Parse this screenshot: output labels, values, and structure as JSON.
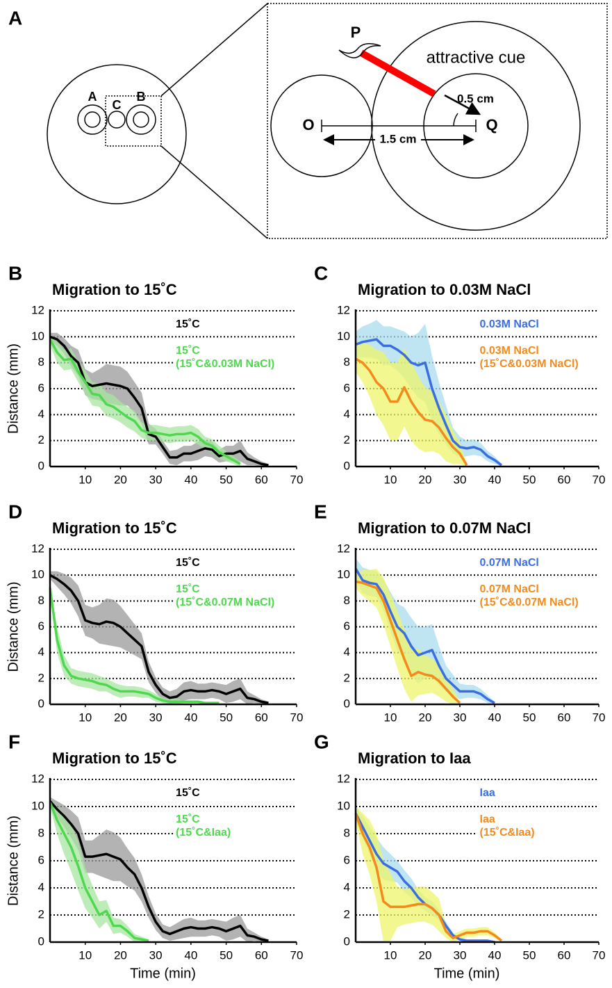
{
  "diagram": {
    "panel": "A",
    "dish_labels": [
      "A",
      "C",
      "B"
    ],
    "point_p": "P",
    "cue_label": "attractive cue",
    "radius_label": "0.5 cm",
    "point_o": "O",
    "point_q": "Q",
    "distance_label": "1.5 cm"
  },
  "chart_data": [
    {
      "type": "line",
      "panel": "B",
      "title": "Migration to 15˚C",
      "ylabel": "Distance (mm)",
      "xlim": [
        0,
        70
      ],
      "xticks": [
        10,
        20,
        30,
        40,
        50,
        60,
        70
      ],
      "ylim": [
        0,
        12
      ],
      "yticks": [
        0,
        2,
        4,
        6,
        8,
        10,
        12
      ],
      "grid": true,
      "legend": "upper right",
      "x": [
        0,
        2,
        4,
        6,
        8,
        10,
        12,
        14,
        16,
        18,
        20,
        22,
        24,
        26,
        28,
        30,
        32,
        34,
        36,
        38,
        40,
        42,
        44,
        46,
        48,
        50,
        52,
        54,
        56,
        58,
        60,
        62
      ],
      "series": [
        {
          "name": "15˚C",
          "color": "#000000",
          "band_color": "#9a9a9a",
          "values": [
            10,
            9.8,
            9.3,
            8.5,
            8,
            6.5,
            6.2,
            6.3,
            6.4,
            6.3,
            6.2,
            6,
            5.3,
            4.5,
            2.5,
            2.3,
            1.5,
            0.7,
            0.7,
            1,
            1,
            1.2,
            1.4,
            1.3,
            0.8,
            1,
            1,
            1.2,
            0.6,
            0.4,
            0.2,
            0.1
          ],
          "error": [
            0.3,
            0.5,
            0.6,
            0.8,
            1,
            1,
            1,
            1.2,
            1.5,
            1.5,
            1.5,
            1.3,
            1.2,
            1.2,
            0.8,
            0.6,
            0.5,
            0.5,
            0.6,
            0.6,
            0.6,
            0.7,
            0.6,
            0.6,
            0.5,
            0.6,
            0.6,
            0.8,
            0.5,
            0.3,
            0.2,
            0.1
          ]
        },
        {
          "name": "15˚C\n(15˚C&0.03M NaCl)",
          "color": "#4fd84f",
          "band_color": "#a8e6a0",
          "values": [
            9.8,
            8.8,
            8.2,
            8.3,
            7.3,
            6.5,
            5.6,
            5.5,
            4.8,
            4.6,
            4.2,
            3.8,
            3.5,
            2.8,
            2.6,
            2.6,
            2.5,
            2.4,
            2.5,
            2.5,
            2.6,
            2.3,
            1.8,
            1.6,
            1.1,
            0.8,
            0.5,
            0.2,
            null,
            null,
            null,
            null
          ],
          "error": [
            0.4,
            0.8,
            0.8,
            0.8,
            0.8,
            0.9,
            0.9,
            0.9,
            0.9,
            0.9,
            0.8,
            0.8,
            0.8,
            0.6,
            0.6,
            0.6,
            0.6,
            0.6,
            0.6,
            0.6,
            0.6,
            0.6,
            0.5,
            0.5,
            0.5,
            0.4,
            0.3,
            0.2,
            null,
            null,
            null,
            null
          ]
        }
      ]
    },
    {
      "type": "line",
      "panel": "C",
      "title": "Migration to 0.03M NaCl",
      "xlim": [
        0,
        70
      ],
      "xticks": [
        10,
        20,
        30,
        40,
        50,
        60,
        70
      ],
      "ylim": [
        0,
        12
      ],
      "yticks": [
        0,
        2,
        4,
        6,
        8,
        10,
        12
      ],
      "grid": true,
      "legend": "upper right",
      "x": [
        0,
        2,
        4,
        6,
        8,
        10,
        12,
        14,
        16,
        18,
        20,
        22,
        24,
        26,
        28,
        30,
        32,
        34,
        36,
        38,
        40,
        42
      ],
      "series": [
        {
          "name": "0.03M NaCl",
          "color": "#3a6ee0",
          "band_color": "#a9dcee",
          "values": [
            9.4,
            9.6,
            9.7,
            9.8,
            9.3,
            9.3,
            9,
            8.6,
            8,
            7.8,
            8,
            6,
            4.5,
            3.2,
            2,
            1.5,
            1.4,
            1.5,
            1.3,
            0.8,
            0.5,
            0.1
          ],
          "error": [
            1,
            1.2,
            1.3,
            1.5,
            1.5,
            1.5,
            1.6,
            1.8,
            2,
            2.5,
            3,
            2.5,
            2,
            1.5,
            1,
            0.8,
            0.6,
            0.6,
            0.5,
            0.4,
            0.3,
            0.1
          ]
        },
        {
          "name": "0.03M NaCl\n(15˚C&0.03M NaCl)",
          "color": "#f28a1c",
          "band_color": "#eef46a",
          "values": [
            8.3,
            8,
            7.4,
            6.5,
            6,
            5,
            5,
            6.1,
            5,
            4.2,
            3.6,
            3.5,
            3,
            2.2,
            1.5,
            1,
            0.1,
            null,
            null,
            null,
            null,
            null
          ],
          "error": [
            1,
            1.5,
            2,
            2.5,
            2.8,
            3,
            3,
            3,
            3,
            2.8,
            2.5,
            2.3,
            2,
            1.8,
            1.3,
            0.8,
            0.1,
            null,
            null,
            null,
            null,
            null
          ]
        }
      ]
    },
    {
      "type": "line",
      "panel": "D",
      "title": "Migration to 15˚C",
      "ylabel": "Distance (mm)",
      "xlim": [
        0,
        70
      ],
      "xticks": [
        10,
        20,
        30,
        40,
        50,
        60,
        70
      ],
      "ylim": [
        0,
        12
      ],
      "yticks": [
        0,
        2,
        4,
        6,
        8,
        10,
        12
      ],
      "grid": true,
      "legend": "upper right",
      "x": [
        0,
        2,
        4,
        6,
        8,
        10,
        12,
        14,
        16,
        18,
        20,
        22,
        24,
        26,
        28,
        30,
        32,
        34,
        36,
        38,
        40,
        42,
        44,
        46,
        48,
        50,
        52,
        54,
        56,
        58,
        60,
        62
      ],
      "series": [
        {
          "name": "15˚C",
          "color": "#000000",
          "band_color": "#9a9a9a",
          "values": [
            10,
            9.7,
            9.3,
            8.8,
            8,
            6.5,
            6.3,
            6.2,
            6.4,
            6.3,
            6,
            5.5,
            5,
            4.5,
            2.5,
            1.5,
            0.8,
            0.5,
            0.6,
            1,
            1.1,
            1,
            1,
            1.1,
            1,
            0.8,
            1,
            1.2,
            0.5,
            0.4,
            0.2,
            0.1
          ],
          "error": [
            0.3,
            0.6,
            0.8,
            1,
            1.2,
            1.2,
            1.2,
            1.5,
            1.8,
            1.8,
            1.6,
            1.4,
            1.2,
            1,
            0.8,
            0.6,
            0.5,
            0.5,
            0.6,
            0.7,
            0.7,
            0.6,
            0.6,
            0.6,
            0.6,
            0.7,
            0.8,
            0.8,
            0.5,
            0.3,
            0.2,
            0.1
          ]
        },
        {
          "name": "15˚C\n(15˚C&0.07M NaCl)",
          "color": "#4fd84f",
          "band_color": "#a8e6a0",
          "values": [
            9,
            5,
            3,
            2.2,
            2,
            1.9,
            1.8,
            1.6,
            1.5,
            1.2,
            1,
            1,
            1,
            0.9,
            0.8,
            0.5,
            0.3,
            0.2,
            0.2,
            0.2,
            0.2,
            0.2,
            0.1,
            0.1,
            0.1,
            null,
            null,
            null,
            null,
            null,
            null,
            null
          ],
          "error": [
            0.3,
            1,
            0.8,
            0.6,
            0.6,
            0.6,
            0.6,
            0.6,
            0.5,
            0.5,
            0.5,
            0.4,
            0.4,
            0.4,
            0.3,
            0.3,
            0.2,
            0.2,
            0.2,
            0.1,
            0.1,
            0.1,
            0.1,
            0.1,
            0.1,
            null,
            null,
            null,
            null,
            null,
            null,
            null
          ]
        }
      ]
    },
    {
      "type": "line",
      "panel": "E",
      "title": "Migration to 0.07M NaCl",
      "xlim": [
        0,
        70
      ],
      "xticks": [
        10,
        20,
        30,
        40,
        50,
        60,
        70
      ],
      "ylim": [
        0,
        12
      ],
      "yticks": [
        0,
        2,
        4,
        6,
        8,
        10,
        12
      ],
      "grid": true,
      "legend": "upper right",
      "x": [
        0,
        2,
        4,
        6,
        8,
        10,
        12,
        14,
        16,
        18,
        20,
        22,
        24,
        26,
        28,
        30,
        32,
        34,
        36,
        38,
        40
      ],
      "series": [
        {
          "name": "0.07M NaCl",
          "color": "#3a6ee0",
          "band_color": "#a9dcee",
          "values": [
            10.5,
            9.6,
            9.4,
            9.3,
            8.5,
            7.2,
            6,
            5.5,
            4.5,
            3.8,
            4,
            4.2,
            3,
            2,
            1.5,
            1,
            1,
            1,
            0.8,
            0.4,
            0.1
          ],
          "error": [
            0.8,
            1,
            1,
            1,
            1.2,
            1.5,
            1.8,
            2,
            2.2,
            2.2,
            2,
            2,
            1.5,
            1,
            0.8,
            0.6,
            0.5,
            0.5,
            0.4,
            0.3,
            0.1
          ]
        },
        {
          "name": "0.07M NaCl\n(15˚C&0.07M NaCl)",
          "color": "#f28a1c",
          "band_color": "#eef46a",
          "values": [
            9.5,
            9.4,
            9.2,
            9,
            8,
            6.5,
            5,
            3.5,
            2.2,
            2.5,
            2.3,
            2.2,
            1.8,
            1.2,
            0.6,
            0.1,
            null,
            null,
            null,
            null,
            null
          ],
          "error": [
            0.5,
            1,
            1.2,
            1.5,
            1.8,
            2,
            2.2,
            2.3,
            2,
            1.8,
            1.5,
            1.3,
            1.2,
            1,
            0.6,
            0.1,
            null,
            null,
            null,
            null,
            null
          ]
        }
      ]
    },
    {
      "type": "line",
      "panel": "F",
      "title": "Migration to 15˚C",
      "ylabel": "Distance (mm)",
      "xlabel": "Time (min)",
      "xlim": [
        0,
        70
      ],
      "xticks": [
        10,
        20,
        30,
        40,
        50,
        60,
        70
      ],
      "ylim": [
        0,
        12
      ],
      "yticks": [
        0,
        2,
        4,
        6,
        8,
        10,
        12
      ],
      "grid": true,
      "legend": "upper right",
      "x": [
        0,
        2,
        4,
        6,
        8,
        10,
        12,
        14,
        16,
        18,
        20,
        22,
        24,
        26,
        28,
        30,
        32,
        34,
        36,
        38,
        40,
        42,
        44,
        46,
        48,
        50,
        52,
        54,
        56,
        58,
        60,
        62
      ],
      "series": [
        {
          "name": "15˚C",
          "color": "#000000",
          "band_color": "#9a9a9a",
          "values": [
            10.4,
            9.8,
            9.3,
            8.7,
            8,
            6.3,
            6.3,
            6.4,
            6.5,
            6.3,
            6.1,
            5.5,
            5,
            4,
            2.6,
            1.5,
            0.8,
            0.6,
            0.8,
            1,
            1.1,
            1,
            1,
            1.1,
            1,
            0.8,
            1,
            1.2,
            0.5,
            0.4,
            0.2,
            0.1
          ],
          "error": [
            0.3,
            0.6,
            0.8,
            1,
            1.2,
            1.2,
            1.2,
            1.5,
            1.8,
            1.8,
            1.6,
            1.4,
            1.2,
            1,
            0.8,
            0.6,
            0.5,
            0.5,
            0.6,
            0.7,
            0.7,
            0.6,
            0.6,
            0.6,
            0.6,
            0.7,
            0.8,
            0.8,
            0.5,
            0.3,
            0.2,
            0.1
          ]
        },
        {
          "name": "15˚C\n(15˚C&Iaa)",
          "color": "#4fd84f",
          "band_color": "#a8e6a0",
          "values": [
            10.3,
            9,
            8,
            7,
            5.6,
            4,
            3,
            2,
            2.3,
            1.2,
            1.2,
            0.8,
            0.3,
            0.2,
            0.1,
            null,
            null,
            null,
            null,
            null,
            null,
            null,
            null,
            null,
            null,
            null,
            null,
            null,
            null,
            null,
            null,
            null
          ],
          "error": [
            0.3,
            1,
            1.5,
            1.8,
            1.8,
            1.5,
            1.2,
            1,
            0.8,
            0.6,
            0.5,
            0.4,
            0.3,
            0.2,
            0.1,
            null,
            null,
            null,
            null,
            null,
            null,
            null,
            null,
            null,
            null,
            null,
            null,
            null,
            null,
            null,
            null,
            null
          ]
        }
      ]
    },
    {
      "type": "line",
      "panel": "G",
      "title": "Migration to Iaa",
      "xlabel": "Time (min)",
      "xlim": [
        0,
        70
      ],
      "xticks": [
        10,
        20,
        30,
        40,
        50,
        60,
        70
      ],
      "ylim": [
        0,
        12
      ],
      "yticks": [
        0,
        2,
        4,
        6,
        8,
        10,
        12
      ],
      "grid": true,
      "legend": "upper right",
      "x": [
        0,
        2,
        4,
        6,
        8,
        10,
        12,
        14,
        16,
        18,
        20,
        22,
        24,
        26,
        28,
        30,
        32,
        34,
        36,
        38,
        40,
        42
      ],
      "series": [
        {
          "name": "Iaa",
          "color": "#3a6ee0",
          "band_color": "#a9dcee",
          "values": [
            9.5,
            8.5,
            7.5,
            6.5,
            5.8,
            5.5,
            5.2,
            4.5,
            4,
            3.3,
            2.8,
            2.5,
            2,
            1.2,
            0.5,
            0.2,
            0.1,
            0.1,
            0.1,
            0.1,
            0,
            null
          ],
          "error": [
            0.5,
            0.8,
            1,
            1.2,
            1.2,
            1,
            0.8,
            0.8,
            0.7,
            0.6,
            0.5,
            0.5,
            0.4,
            0.3,
            0.2,
            0.1,
            0.1,
            0.1,
            0.1,
            0.1,
            0,
            null
          ]
        },
        {
          "name": "Iaa\n(15˚C&Iaa)",
          "color": "#f28a1c",
          "band_color": "#eef46a",
          "values": [
            9.5,
            8,
            7,
            5.5,
            3,
            2.6,
            2.6,
            2.6,
            2.7,
            2.8,
            2.8,
            2.5,
            2,
            0.8,
            0.3,
            0.5,
            0.7,
            0.7,
            0.8,
            0.8,
            0.5,
            0.1
          ],
          "error": [
            0.5,
            1.5,
            2,
            2.5,
            3,
            2.5,
            1.5,
            1.3,
            1.3,
            1.3,
            1.3,
            1.2,
            1.2,
            0.5,
            0.3,
            0.3,
            0.3,
            0.3,
            0.3,
            0.3,
            0.2,
            0.1
          ]
        }
      ]
    }
  ]
}
